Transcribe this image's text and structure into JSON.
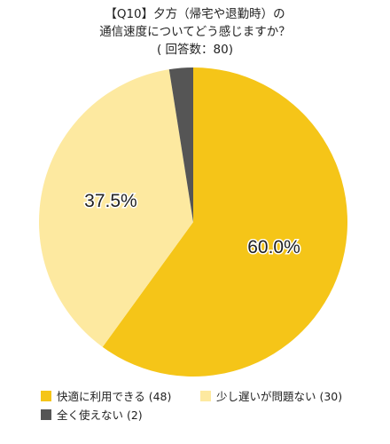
{
  "title": {
    "line1": "【Q10】夕方（帰宅や退勤時）の",
    "line2": "通信速度についてどう感じますか？",
    "line3": "( 回答数：80)"
  },
  "chart_data": {
    "type": "pie",
    "categories": [
      "快適に利用できる",
      "少し遅いが問題ない",
      "全く使えない"
    ],
    "counts": [
      48,
      30,
      2
    ],
    "values": [
      60.0,
      37.5,
      2.5
    ],
    "data_labels": [
      "60.0%",
      "37.5%",
      ""
    ],
    "colors": [
      "#F5C518",
      "#FDE9A0",
      "#555555"
    ],
    "legend": [
      "快適に利用できる (48)",
      "少し遅いが問題ない (30)",
      "全く使えない (2)"
    ],
    "legend_position": "bottom"
  }
}
